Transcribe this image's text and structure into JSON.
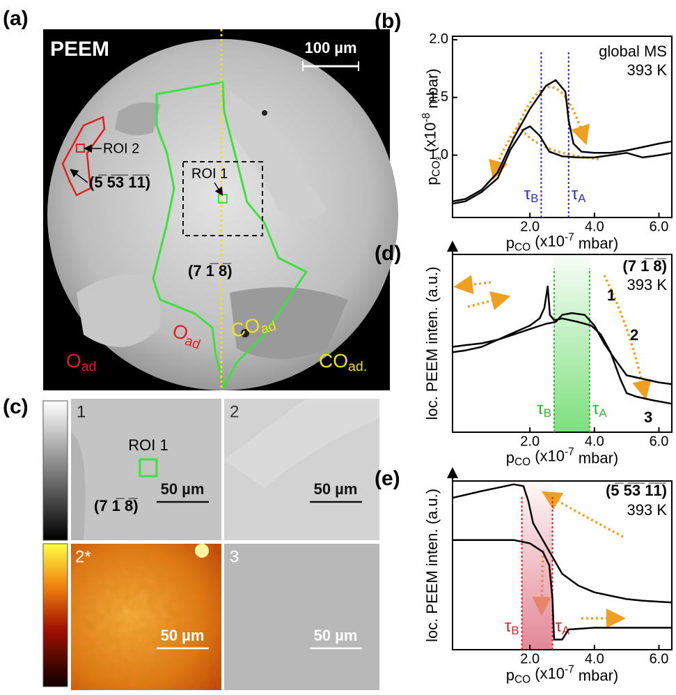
{
  "panel_labels": {
    "a": "(a)",
    "b": "(b)",
    "c": "(c)",
    "d": "(d)",
    "e": "(e)"
  },
  "peem": {
    "title": "PEEM",
    "scale_bar": "100 µm",
    "roi2": "ROI 2",
    "roi1": "ROI 1",
    "facet_stepped": "(5̅ 5̅3̅ 1̅1̅)",
    "facet_main": "(7 1̅ 8̅)",
    "o_ad_inner": [
      "O",
      {
        "sub": "ad"
      }
    ],
    "co_ad_inner": [
      "CO",
      {
        "sub": "ad"
      }
    ],
    "o_ad_outer": [
      "O",
      {
        "sub": "ad"
      }
    ],
    "co_ad_outer": [
      "CO",
      {
        "sub": "ad."
      }
    ]
  },
  "tiles": {
    "labels": [
      "1",
      "2",
      "2*",
      "3"
    ],
    "roi1": "ROI 1",
    "facet": "(7 1̅ 8̅)",
    "scale_bar": "50 µm"
  },
  "chart_data": [
    {
      "type": "line",
      "x_label": [
        "p",
        {
          "sub": "CO"
        },
        " (x10",
        {
          "sup": "-7"
        },
        " mbar)"
      ],
      "y_label": [
        "p",
        {
          "sub": "CO₂"
        },
        " (x10",
        {
          "sup": "-8"
        },
        " mbar)"
      ],
      "annotations": [
        "global MS",
        "393 K"
      ],
      "xlim": [
        -0.4,
        6.4
      ],
      "xticks": [
        {
          "value": 2,
          "label": "2.0"
        },
        {
          "value": 4,
          "label": "4.0"
        },
        {
          "value": 6,
          "label": "6.0"
        }
      ],
      "ylim": [
        0.46,
        2.03
      ],
      "yticks": [
        {
          "value": 1,
          "label": "1.0"
        },
        {
          "value": 1.5,
          "label": "1.5"
        },
        {
          "value": 2,
          "label": "2.0"
        }
      ],
      "markers": [
        {
          "x": 2.35,
          "label": [
            "τ",
            {
              "sub": "B"
            }
          ],
          "color": "#2b2bd0"
        },
        {
          "x": 3.2,
          "label": [
            "τ",
            {
              "sub": "A"
            }
          ],
          "color": "#2b2bd0"
        }
      ],
      "series": [
        {
          "color": "#000000",
          "x": [
            -0.4,
            0,
            0.5,
            1.0,
            1.5,
            2.0,
            2.5,
            2.8,
            3.1,
            3.2,
            3.35,
            3.6,
            4.0,
            4.5,
            5.0,
            5.5,
            6.0,
            6.4
          ],
          "values": [
            0.6,
            0.62,
            0.7,
            0.85,
            1.15,
            1.4,
            1.6,
            1.65,
            1.55,
            1.3,
            1.1,
            1.03,
            1.02,
            1.02,
            1.04,
            1.07,
            1.1,
            1.12
          ]
        },
        {
          "color": "#000000",
          "x": [
            -0.4,
            0,
            0.5,
            1.0,
            1.4,
            1.8,
            2.0,
            2.3,
            2.6,
            3.0,
            3.5,
            4.0,
            4.5,
            5.0,
            5.5,
            6.0,
            6.4
          ],
          "values": [
            0.58,
            0.6,
            0.68,
            0.8,
            1.05,
            1.22,
            1.25,
            1.17,
            1.03,
            0.99,
            0.98,
            0.98,
            1.0,
            1.02,
            0.98,
            1.0,
            1.02
          ]
        }
      ]
    },
    {
      "type": "line",
      "x_label": [
        "p",
        {
          "sub": "CO"
        },
        " (x10",
        {
          "sup": "-7"
        },
        " mbar)"
      ],
      "y_label": [
        "loc. PEEM inten. (a.u.)"
      ],
      "annotations": [
        "(7 1̅ 8̅)",
        "393 K"
      ],
      "curve_labels": [
        "1",
        "2",
        "3"
      ],
      "xlim": [
        -0.4,
        6.4
      ],
      "xticks": [
        {
          "value": 2,
          "label": "2.0"
        },
        {
          "value": 4,
          "label": "4.0"
        },
        {
          "value": 6,
          "label": "6.0"
        }
      ],
      "ylim": [
        0,
        1
      ],
      "shade_color": "#6fdc6f",
      "markers": [
        {
          "x": 2.75,
          "label": [
            "τ",
            {
              "sub": "B"
            }
          ],
          "color": "#2fb52f"
        },
        {
          "x": 3.85,
          "label": [
            "τ",
            {
              "sub": "A"
            }
          ],
          "color": "#2fb52f"
        }
      ],
      "series": [
        {
          "color": "#000000",
          "x": [
            -0.4,
            0,
            0.5,
            1.0,
            1.5,
            2.0,
            2.3,
            2.45,
            2.55,
            2.62,
            2.75,
            3.0,
            3.5,
            3.9,
            4.2,
            4.5,
            4.8,
            5.0,
            5.3,
            5.8,
            6.4
          ],
          "values": [
            0.45,
            0.46,
            0.48,
            0.52,
            0.56,
            0.6,
            0.64,
            0.7,
            0.82,
            0.66,
            0.63,
            0.64,
            0.62,
            0.6,
            0.55,
            0.45,
            0.3,
            0.22,
            0.2,
            0.18,
            0.16
          ]
        },
        {
          "color": "#000000",
          "x": [
            -0.4,
            0,
            0.5,
            1.0,
            1.5,
            2.0,
            2.5,
            2.8,
            3.0,
            3.3,
            3.7,
            4.0,
            4.3,
            4.6,
            5.0,
            5.5,
            6.0,
            6.4
          ],
          "values": [
            0.48,
            0.49,
            0.5,
            0.52,
            0.55,
            0.58,
            0.61,
            0.62,
            0.66,
            0.67,
            0.66,
            0.6,
            0.5,
            0.42,
            0.32,
            0.3,
            0.28,
            0.27
          ]
        }
      ]
    },
    {
      "type": "line",
      "x_label": [
        "p",
        {
          "sub": "CO"
        },
        " (x10",
        {
          "sup": "-7"
        },
        " mbar)"
      ],
      "y_label": [
        "loc. PEEM inten. (a.u.)"
      ],
      "annotations": [
        "(5̅ 5̅3̅ 1̅1̅)",
        "393 K"
      ],
      "xlim": [
        -0.4,
        6.4
      ],
      "xticks": [
        {
          "value": 2,
          "label": "2.0"
        },
        {
          "value": 4,
          "label": "4.0"
        },
        {
          "value": 6,
          "label": "6.0"
        }
      ],
      "ylim": [
        0,
        1
      ],
      "shade_color": "#e07a8a",
      "markers": [
        {
          "x": 1.75,
          "label": [
            "τ",
            {
              "sub": "B"
            }
          ],
          "color": "#e02020"
        },
        {
          "x": 2.7,
          "label": [
            "τ",
            {
              "sub": "A"
            }
          ],
          "color": "#e02020"
        }
      ],
      "series": [
        {
          "color": "#000000",
          "x": [
            -0.4,
            0.5,
            1.0,
            1.5,
            1.8,
            1.95,
            2.1,
            2.4,
            2.7,
            3.0,
            3.5,
            4.0,
            4.5,
            5.0,
            5.5,
            6.4
          ],
          "values": [
            0.9,
            0.94,
            0.96,
            0.98,
            0.97,
            0.88,
            0.75,
            0.65,
            0.55,
            0.45,
            0.38,
            0.34,
            0.32,
            0.3,
            0.29,
            0.28
          ]
        },
        {
          "color": "#000000",
          "x": [
            -0.4,
            0.5,
            1.5,
            2.0,
            2.4,
            2.6,
            2.7,
            2.75,
            3.0,
            3.2,
            4.0,
            5.0,
            6.4
          ],
          "values": [
            0.65,
            0.65,
            0.65,
            0.63,
            0.58,
            0.5,
            0.3,
            0.06,
            0.06,
            0.12,
            0.13,
            0.13,
            0.13
          ]
        }
      ]
    }
  ]
}
